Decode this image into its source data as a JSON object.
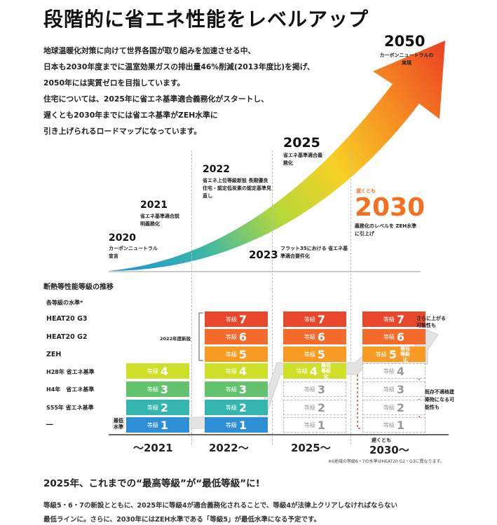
{
  "title": "段階的に省エネ性能をレベルアップ",
  "intro_lines": [
    "地球温暖化対策に向けて世界各国が取り組みを加速させる中、",
    "日本も2030年度までに温室効果ガスの排出量46%削減(2013年度比)を掲げ、",
    "2050年には実質ゼロを目指しています。",
    "住宅については、2025年に省エネ基準適合義務化がスタートし、",
    "遅くとも2030年までには省エネ基準がZEH水準に",
    "引き上げられるロードマップになっています。"
  ],
  "milestones": {
    "m2020": {
      "year": "2020",
      "text": "カーボンニュートラル宣言"
    },
    "m2021": {
      "year": "2021",
      "text": "省エネ基準適合説明義務化"
    },
    "m2022": {
      "year": "2022",
      "text": "省エネ上位等級新設 長期優良住宅・認定低炭素の認定基準見直し"
    },
    "m2023": {
      "year": "2023",
      "text": "フラット35における 省エネ基準適合要件化"
    },
    "m2025": {
      "year": "2025",
      "text": "省エネ基準適合義務化"
    },
    "m2030": {
      "pre": "遅くとも",
      "year": "2030",
      "text": "義務化のレベルを ZEH水準に引上げ"
    },
    "m2050": {
      "year": "2050",
      "text": "カーボンニュートラルの実現"
    }
  },
  "grade_section": {
    "heading": "断熱等性能等級の推移",
    "sub": "各等級の水準*",
    "rows": [
      "HEAT20 G3",
      "HEAT20 G2",
      "ZEH",
      "H28年 省エネ基準",
      "H4年　省エネ基準",
      "S55年 省エネ基準",
      "―"
    ],
    "grade_word": "等級",
    "min_label": "最低水準",
    "new_label": "2022年度新設",
    "note_up": "さらに上がる可能性も",
    "note_existing": "既存不適格建築物になる可能性も",
    "badge_2025": "最低等級化",
    "badge_2030": "最低等級化",
    "footnote": "※6地域の等級6・7の水準はHEAT20 G2・G3に異なります。",
    "axis": [
      "〜2021",
      "2022〜",
      "2025〜",
      "2030〜"
    ],
    "axis_pre_2030": "遅くとも",
    "colors": {
      "g7": "#e8472c",
      "g6": "#f36a2c",
      "g5": "#f89b23",
      "g4": "#cfe02a",
      "g3": "#63c36c",
      "g2": "#34b6b0",
      "g1": "#2f8fd6"
    }
  },
  "bottom": {
    "heading": "2025年、これまでの“最高等級”が“最低等級”に!",
    "lines": [
      "等級5・6・7の新設とともに、2025年に等級4が適合義務化されることで、等級4が法律上クリアしなければならない",
      "最低ラインに。さらに、2030年にはZEH水準である「等級5」が最低水準になる予定です。"
    ]
  }
}
